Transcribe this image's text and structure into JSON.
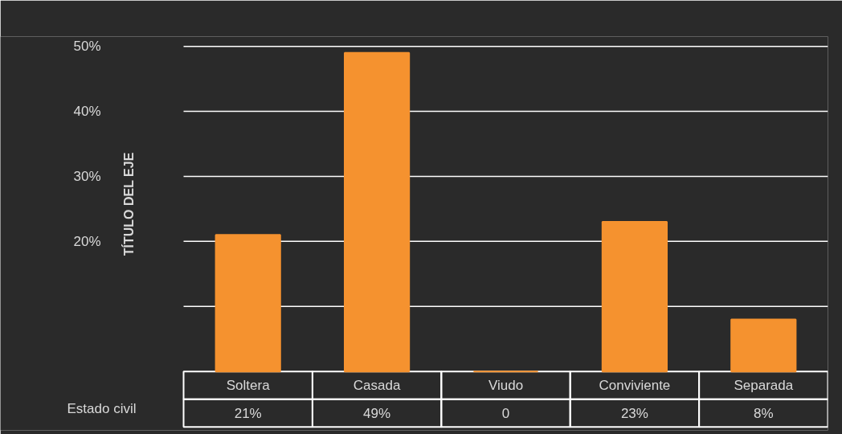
{
  "chart_data": {
    "type": "bar",
    "ylabel": "TÍTULO DEL EJE",
    "categories": [
      "Soltera",
      "Casada",
      "Viudo",
      "Conviviente",
      "Separada"
    ],
    "values": [
      21,
      49,
      0,
      23,
      8
    ],
    "value_labels": [
      "21%",
      "49%",
      "0",
      "23%",
      "8%"
    ],
    "color": "#f5922f",
    "ylim": [
      0,
      51.5
    ],
    "yticks": [
      {
        "value": 10,
        "label": null
      },
      {
        "value": 20,
        "label": "20%"
      },
      {
        "value": 30,
        "label": "30%"
      },
      {
        "value": 40,
        "label": "40%"
      },
      {
        "value": 50,
        "label": "50%"
      }
    ],
    "grid": "y",
    "annotations": [
      "Estado civil"
    ]
  }
}
